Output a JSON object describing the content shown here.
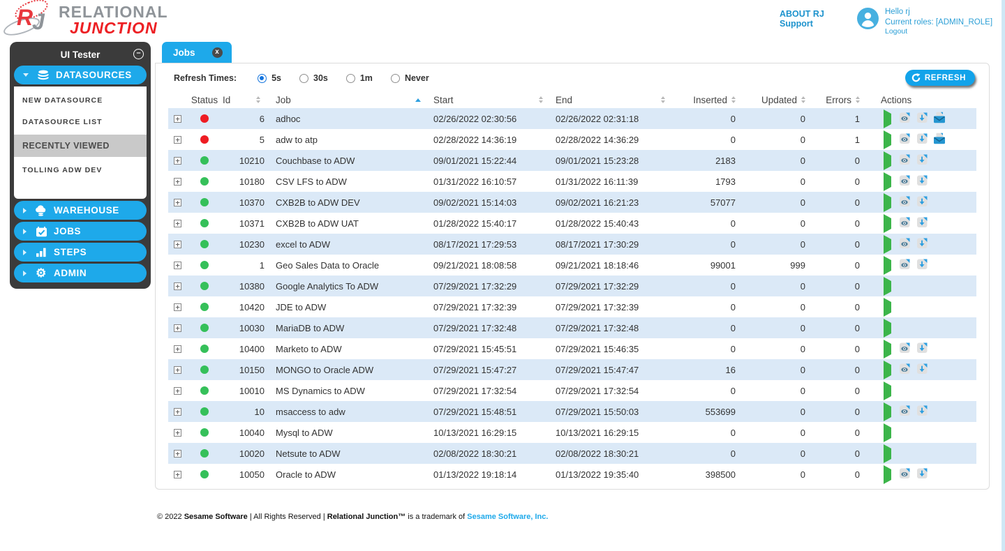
{
  "header": {
    "logo": {
      "monogram_r": "R",
      "monogram_j": "J",
      "line1": "RELATIONAL",
      "line2": "JUNCTION"
    },
    "links": {
      "about": "ABOUT RJ",
      "support": "Support"
    },
    "user": {
      "greeting": "Hello rj",
      "roles": "Current roles: [ADMIN_ROLE]",
      "logout": "Logout"
    }
  },
  "sidebar": {
    "title": "UI Tester",
    "sections": [
      {
        "label": "DATASOURCES",
        "icon": "database-icon",
        "expanded": true,
        "items": [
          {
            "label": "NEW DATASOURCE",
            "type": "link"
          },
          {
            "label": "DATASOURCE LIST",
            "type": "link"
          },
          {
            "label": "RECENTLY VIEWED",
            "type": "heading"
          },
          {
            "label": "TOLLING ADW DEV",
            "type": "link"
          }
        ]
      },
      {
        "label": "WAREHOUSE",
        "icon": "cloud-icon",
        "expanded": false
      },
      {
        "label": "JOBS",
        "icon": "calendar-check-icon",
        "expanded": false
      },
      {
        "label": "STEPS",
        "icon": "bar-chart-icon",
        "expanded": false
      },
      {
        "label": "ADMIN",
        "icon": "gear-icon",
        "expanded": false
      }
    ]
  },
  "main": {
    "tab": {
      "label": "Jobs"
    },
    "refresh": {
      "label": "Refresh Times:",
      "options": [
        {
          "label": "5s",
          "selected": true
        },
        {
          "label": "30s",
          "selected": false
        },
        {
          "label": "1m",
          "selected": false
        },
        {
          "label": "Never",
          "selected": false
        }
      ],
      "button_label": "REFRESH"
    },
    "table": {
      "columns": [
        {
          "key": "status",
          "label": "Status",
          "sortable": false
        },
        {
          "key": "id",
          "label": "Id",
          "sortable": true,
          "align": "left"
        },
        {
          "key": "job",
          "label": "Job",
          "sortable": true,
          "align": "left",
          "sorted": "asc"
        },
        {
          "key": "start",
          "label": "Start",
          "sortable": true,
          "align": "left"
        },
        {
          "key": "end",
          "label": "End",
          "sortable": true,
          "align": "left"
        },
        {
          "key": "inserted",
          "label": "Inserted",
          "sortable": true,
          "align": "right"
        },
        {
          "key": "updated",
          "label": "Updated",
          "sortable": true,
          "align": "right"
        },
        {
          "key": "errors",
          "label": "Errors",
          "sortable": true,
          "align": "right"
        },
        {
          "key": "actions",
          "label": "Actions",
          "sortable": false
        }
      ],
      "rows": [
        {
          "status": "red",
          "id": "6",
          "job": "adhoc",
          "start": "02/26/2022 02:30:56",
          "end": "02/26/2022 02:31:18",
          "inserted": "0",
          "updated": "0",
          "errors": "1",
          "actions": [
            "run",
            "view-log",
            "download-log",
            "email-log"
          ]
        },
        {
          "status": "red",
          "id": "5",
          "job": "adw to atp",
          "start": "02/28/2022 14:36:19",
          "end": "02/28/2022 14:36:29",
          "inserted": "0",
          "updated": "0",
          "errors": "1",
          "actions": [
            "run",
            "view-log",
            "download-log",
            "email-log"
          ]
        },
        {
          "status": "green",
          "id": "10210",
          "job": "Couchbase to ADW",
          "start": "09/01/2021 15:22:44",
          "end": "09/01/2021 15:23:28",
          "inserted": "2183",
          "updated": "0",
          "errors": "0",
          "actions": [
            "run",
            "view-log",
            "download-log"
          ]
        },
        {
          "status": "green",
          "id": "10180",
          "job": "CSV LFS to ADW",
          "start": "01/31/2022 16:10:57",
          "end": "01/31/2022 16:11:39",
          "inserted": "1793",
          "updated": "0",
          "errors": "0",
          "actions": [
            "run",
            "view-log",
            "download-log"
          ]
        },
        {
          "status": "green",
          "id": "10370",
          "job": "CXB2B to ADW DEV",
          "start": "09/02/2021 15:14:03",
          "end": "09/02/2021 16:21:23",
          "inserted": "57077",
          "updated": "0",
          "errors": "0",
          "actions": [
            "run",
            "view-log",
            "download-log"
          ]
        },
        {
          "status": "green",
          "id": "10371",
          "job": "CXB2B to ADW UAT",
          "start": "01/28/2022 15:40:17",
          "end": "01/28/2022 15:40:43",
          "inserted": "0",
          "updated": "0",
          "errors": "0",
          "actions": [
            "run",
            "view-log",
            "download-log"
          ]
        },
        {
          "status": "green",
          "id": "10230",
          "job": "excel to ADW",
          "start": "08/17/2021 17:29:53",
          "end": "08/17/2021 17:30:29",
          "inserted": "0",
          "updated": "0",
          "errors": "0",
          "actions": [
            "run",
            "view-log",
            "download-log"
          ]
        },
        {
          "status": "green",
          "id": "1",
          "job": "Geo Sales Data to Oracle",
          "start": "09/21/2021 18:08:58",
          "end": "09/21/2021 18:18:46",
          "inserted": "99001",
          "updated": "999",
          "errors": "0",
          "actions": [
            "run",
            "view-log",
            "download-log"
          ]
        },
        {
          "status": "green",
          "id": "10380",
          "job": "Google Analytics To ADW",
          "start": "07/29/2021 17:32:29",
          "end": "07/29/2021 17:32:29",
          "inserted": "0",
          "updated": "0",
          "errors": "0",
          "actions": [
            "run"
          ]
        },
        {
          "status": "green",
          "id": "10420",
          "job": "JDE to ADW",
          "start": "07/29/2021 17:32:39",
          "end": "07/29/2021 17:32:39",
          "inserted": "0",
          "updated": "0",
          "errors": "0",
          "actions": [
            "run"
          ]
        },
        {
          "status": "green",
          "id": "10030",
          "job": "MariaDB to ADW",
          "start": "07/29/2021 17:32:48",
          "end": "07/29/2021 17:32:48",
          "inserted": "0",
          "updated": "0",
          "errors": "0",
          "actions": [
            "run"
          ]
        },
        {
          "status": "green",
          "id": "10400",
          "job": "Marketo to ADW",
          "start": "07/29/2021 15:45:51",
          "end": "07/29/2021 15:46:35",
          "inserted": "0",
          "updated": "0",
          "errors": "0",
          "actions": [
            "run",
            "view-log",
            "download-log"
          ]
        },
        {
          "status": "green",
          "id": "10150",
          "job": "MONGO to Oracle ADW",
          "start": "07/29/2021 15:47:27",
          "end": "07/29/2021 15:47:47",
          "inserted": "16",
          "updated": "0",
          "errors": "0",
          "actions": [
            "run",
            "view-log",
            "download-log"
          ]
        },
        {
          "status": "green",
          "id": "10010",
          "job": "MS Dynamics to ADW",
          "start": "07/29/2021 17:32:54",
          "end": "07/29/2021 17:32:54",
          "inserted": "0",
          "updated": "0",
          "errors": "0",
          "actions": [
            "run"
          ]
        },
        {
          "status": "green",
          "id": "10",
          "job": "msaccess to adw",
          "start": "07/29/2021 15:48:51",
          "end": "07/29/2021 15:50:03",
          "inserted": "553699",
          "updated": "0",
          "errors": "0",
          "actions": [
            "run",
            "view-log",
            "download-log"
          ]
        },
        {
          "status": "green",
          "id": "10040",
          "job": "Mysql to ADW",
          "start": "10/13/2021 16:29:15",
          "end": "10/13/2021 16:29:15",
          "inserted": "0",
          "updated": "0",
          "errors": "0",
          "actions": [
            "run"
          ]
        },
        {
          "status": "green",
          "id": "10020",
          "job": "Netsute to ADW",
          "start": "02/08/2022 18:30:21",
          "end": "02/08/2022 18:30:21",
          "inserted": "0",
          "updated": "0",
          "errors": "0",
          "actions": [
            "run"
          ]
        },
        {
          "status": "green",
          "id": "10050",
          "job": "Oracle to ADW",
          "start": "01/13/2022 19:18:14",
          "end": "01/13/2022 19:35:40",
          "inserted": "398500",
          "updated": "0",
          "errors": "0",
          "actions": [
            "run",
            "view-log",
            "download-log"
          ]
        }
      ]
    }
  },
  "footer": {
    "copyright": "© 2022 ",
    "company": "Sesame Software",
    "middle": " | All Rights Reserved | ",
    "product": "Relational Junction™",
    "trademark_text": " is a trademark of ",
    "link": "Sesame Software, Inc."
  },
  "icons": {
    "expand": "+",
    "collapse": "–",
    "close": "x"
  },
  "colors": {
    "accent": "#1ea9ea",
    "status_red": "#ee1c23",
    "status_green": "#35c05a",
    "row_alt": "#dbe9f7",
    "play_green": "#3cb54a"
  }
}
